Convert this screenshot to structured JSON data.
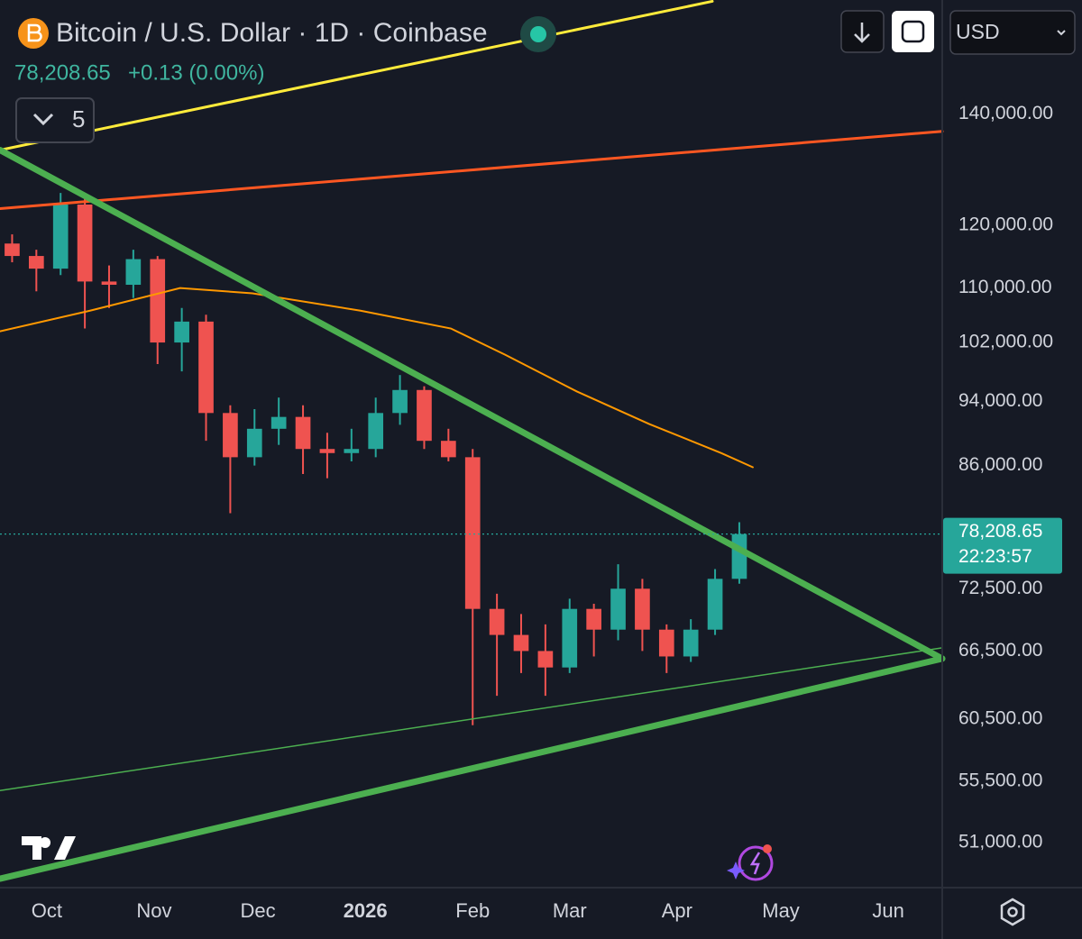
{
  "header": {
    "title": "Bitcoin / U.S. Dollar · 1D · Coinbase",
    "price": "78,208.65",
    "change": "+0.13 (0.00%)",
    "indicators": "5",
    "currency": "USD",
    "countdown": "22:23:57"
  },
  "chart_data": {
    "type": "candlestick",
    "log_scale": true,
    "up_color": "#26a69a",
    "down_color": "#ef5350",
    "x": [
      -10,
      -3,
      4,
      11,
      18,
      25,
      32,
      39,
      46,
      53,
      60,
      67,
      74,
      81,
      88,
      95,
      102,
      109,
      116,
      123,
      130,
      137,
      144,
      151,
      158,
      165,
      172,
      179,
      186,
      193,
      200
    ],
    "open": [
      117000,
      115000,
      113000,
      123500,
      111000,
      110500,
      114500,
      102000,
      105000,
      92500,
      87000,
      90500,
      92000,
      88000,
      87500,
      88000,
      92500,
      95500,
      89000,
      87000,
      70500,
      68000,
      66500,
      65000,
      70500,
      68500,
      72500,
      68500,
      66000,
      68500,
      73500
    ],
    "high": [
      118500,
      116000,
      125500,
      124500,
      113500,
      116000,
      115000,
      107000,
      106000,
      93500,
      93000,
      94500,
      93500,
      90000,
      90500,
      94500,
      97500,
      96000,
      90500,
      88000,
      72000,
      70000,
      69000,
      71500,
      71000,
      75000,
      73500,
      69000,
      69500,
      74500,
      79500
    ],
    "low": [
      114000,
      109500,
      112000,
      104000,
      107000,
      108500,
      99000,
      98000,
      89000,
      80500,
      86000,
      88500,
      85000,
      84500,
      86500,
      87000,
      91000,
      88000,
      86500,
      60000,
      62500,
      64500,
      62500,
      64500,
      66000,
      67500,
      66500,
      64500,
      65500,
      68000,
      73000
    ],
    "close": [
      115000,
      113000,
      123500,
      111000,
      110500,
      114500,
      102000,
      105000,
      92500,
      87000,
      90500,
      92000,
      88000,
      87500,
      88000,
      92500,
      95500,
      89000,
      87000,
      70500,
      68000,
      66500,
      65000,
      70500,
      68500,
      72500,
      68500,
      66000,
      68500,
      73500,
      78208.65
    ],
    "last_price": {
      "value": 78208.65,
      "label": "78,208.65"
    },
    "lines": [
      {
        "color": "#ffeb3b",
        "x": [
          -13.5,
          192.2
        ],
        "values": [
          133200,
          163700
        ]
      },
      {
        "color": "#ff5722",
        "x": [
          -13.5,
          258.6
        ],
        "values": [
          122800,
          136700
        ]
      },
      {
        "color": "#4caf50",
        "x": [
          -13.5,
          258.6
        ],
        "values": [
          54800,
          66800
        ]
      },
      {
        "color": "#ff9800",
        "x": [
          -13.5,
          12.5,
          38.5,
          59.4,
          90.6,
          116.7,
          132.3,
          153.1,
          174,
          194.8,
          203.9
        ],
        "values": [
          103600,
          106600,
          110000,
          109200,
          106600,
          104000,
          100300,
          95300,
          91100,
          87500,
          85800
        ]
      },
      {
        "color": "#4caf50",
        "x": [
          -13.5,
          258.6
        ],
        "values": [
          133200,
          65800
        ]
      },
      {
        "color": "#4caf50",
        "x": [
          -13.5,
          258.6
        ],
        "values": [
          48500,
          65800
        ]
      }
    ],
    "xlim": [
      -13.5,
      258.6
    ],
    "ylim": [
      47900,
      164000
    ],
    "xticks": [
      {
        "value": 0,
        "label": "Oct"
      },
      {
        "value": 31,
        "label": "Nov"
      },
      {
        "value": 61,
        "label": "Dec"
      },
      {
        "value": 92,
        "label": "2026"
      },
      {
        "value": 123,
        "label": "Feb"
      },
      {
        "value": 151,
        "label": "Mar"
      },
      {
        "value": 182,
        "label": "Apr"
      },
      {
        "value": 212,
        "label": "May"
      },
      {
        "value": 243,
        "label": "Jun"
      }
    ],
    "yticks": [
      {
        "value": 140000,
        "label": "140,000.00"
      },
      {
        "value": 120000,
        "label": "120,000.00"
      },
      {
        "value": 110000,
        "label": "110,000.00"
      },
      {
        "value": 102000,
        "label": "102,000.00"
      },
      {
        "value": 94000,
        "label": "94,000.00"
      },
      {
        "value": 86000,
        "label": "86,000.00"
      },
      {
        "value": 72500,
        "label": "72,500.00"
      },
      {
        "value": 66500,
        "label": "66,500.00"
      },
      {
        "value": 60500,
        "label": "60,500.00"
      },
      {
        "value": 55500,
        "label": "55,500.00"
      },
      {
        "value": 51000,
        "label": "51,000.00"
      }
    ]
  }
}
